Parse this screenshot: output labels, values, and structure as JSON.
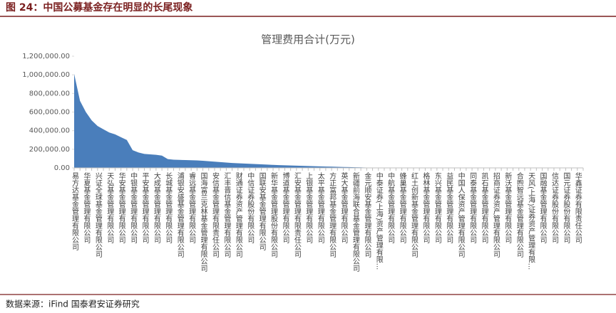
{
  "header": {
    "title": "图 24：中国公募基金存在明显的长尾现象"
  },
  "chart_data": {
    "type": "area",
    "title": "管理费用合计(万元)",
    "color": "#4a7ebb",
    "categories": [
      "易方达基金管理有限公司",
      null,
      "华夏基金管理有限公司",
      null,
      "兴证全球基金管理有限公司",
      null,
      "天弘基金管理有限公司",
      null,
      "华安基金管理有限公司",
      null,
      "中银基金管理有限公司",
      null,
      "平安基金管理有限公司",
      null,
      "大成基金管理有限公司",
      null,
      "长城基金管理有限公司",
      null,
      "浦银安盛基金管理有限公司",
      null,
      "睿远基金管理有限公司",
      null,
      "国海富兰克林基金管理有限公司",
      null,
      "安信基金管理有限责任公司",
      null,
      "汇丰晋信基金管理有限公司",
      null,
      "财通证券资产管理有限公司",
      null,
      "中信证券股份有限公司",
      null,
      "国联安基金管理有限公司",
      null,
      "新华基金管理股份有限公司",
      null,
      "博道基金管理有限公司",
      null,
      "汇安基金管理有限责任公司",
      null,
      "上银基金管理有限公司",
      null,
      "太平基金管理有限公司",
      null,
      "方正富邦基金管理有限公司",
      null,
      "英大基金管理有限公司",
      null,
      "新疆前海联合基金管理有限公司",
      null,
      "金元顺安基金管理有限公司",
      null,
      "中泰证券(上海)资产管理有限...",
      null,
      "中航基金管理有限公司",
      null,
      "蜂巢基金管理有限公司",
      null,
      "红土创新基金管理有限公司",
      null,
      "格林基金管理有限公司",
      null,
      "东兴基金管理有限公司",
      null,
      "益民基金管理有限公司",
      null,
      "中国人保资产管理有限公司",
      null,
      "同泰基金管理有限公司",
      null,
      "凯石基金管理有限公司",
      null,
      "招商证券资产管理有限公司",
      null,
      "新沃基金管理有限公司",
      null,
      "合煦智远基金管理有限公司",
      null,
      "天风(上海)证券资产管理有限...",
      null,
      "国融基金管理有限公司",
      null,
      "信达证券股份有限公司",
      null,
      "国元证券股份有限公司",
      null,
      "华鑫证券有限责任公司",
      null
    ],
    "values": [
      1010000,
      720000,
      600000,
      510000,
      450000,
      415000,
      380000,
      360000,
      330000,
      300000,
      190000,
      165000,
      150000,
      145000,
      140000,
      132000,
      95000,
      88000,
      86000,
      84000,
      82000,
      80000,
      76000,
      72000,
      67000,
      62000,
      57000,
      53000,
      50000,
      47000,
      44000,
      41000,
      38000,
      35000,
      32000,
      30000,
      28000,
      26000,
      24000,
      22000,
      20000,
      18000,
      16000,
      14500,
      13000,
      11500,
      10000,
      8500,
      7000,
      5500,
      4000,
      3000,
      2000,
      1000,
      0,
      0,
      0,
      0,
      0,
      0,
      0,
      0,
      0,
      0,
      0,
      0,
      0,
      0,
      0,
      0,
      0,
      0,
      0,
      0,
      0,
      0,
      0,
      0,
      0,
      0,
      0,
      0,
      0,
      0,
      0,
      0,
      0,
      0
    ],
    "ylim": [
      0,
      1200000
    ],
    "yticks": [
      {
        "value": 0,
        "label": "0.00"
      },
      {
        "value": 200000,
        "label": "200,000.00"
      },
      {
        "value": 400000,
        "label": "400,000.00"
      },
      {
        "value": 600000,
        "label": "600,000.00"
      },
      {
        "value": 800000,
        "label": "800,000.00"
      },
      {
        "value": 1000000,
        "label": "1,000,000.00"
      },
      {
        "value": 1200000,
        "label": "1,200,000.00"
      }
    ]
  },
  "footer": {
    "source": "数据来源：iFind 国泰君安证券研究"
  }
}
